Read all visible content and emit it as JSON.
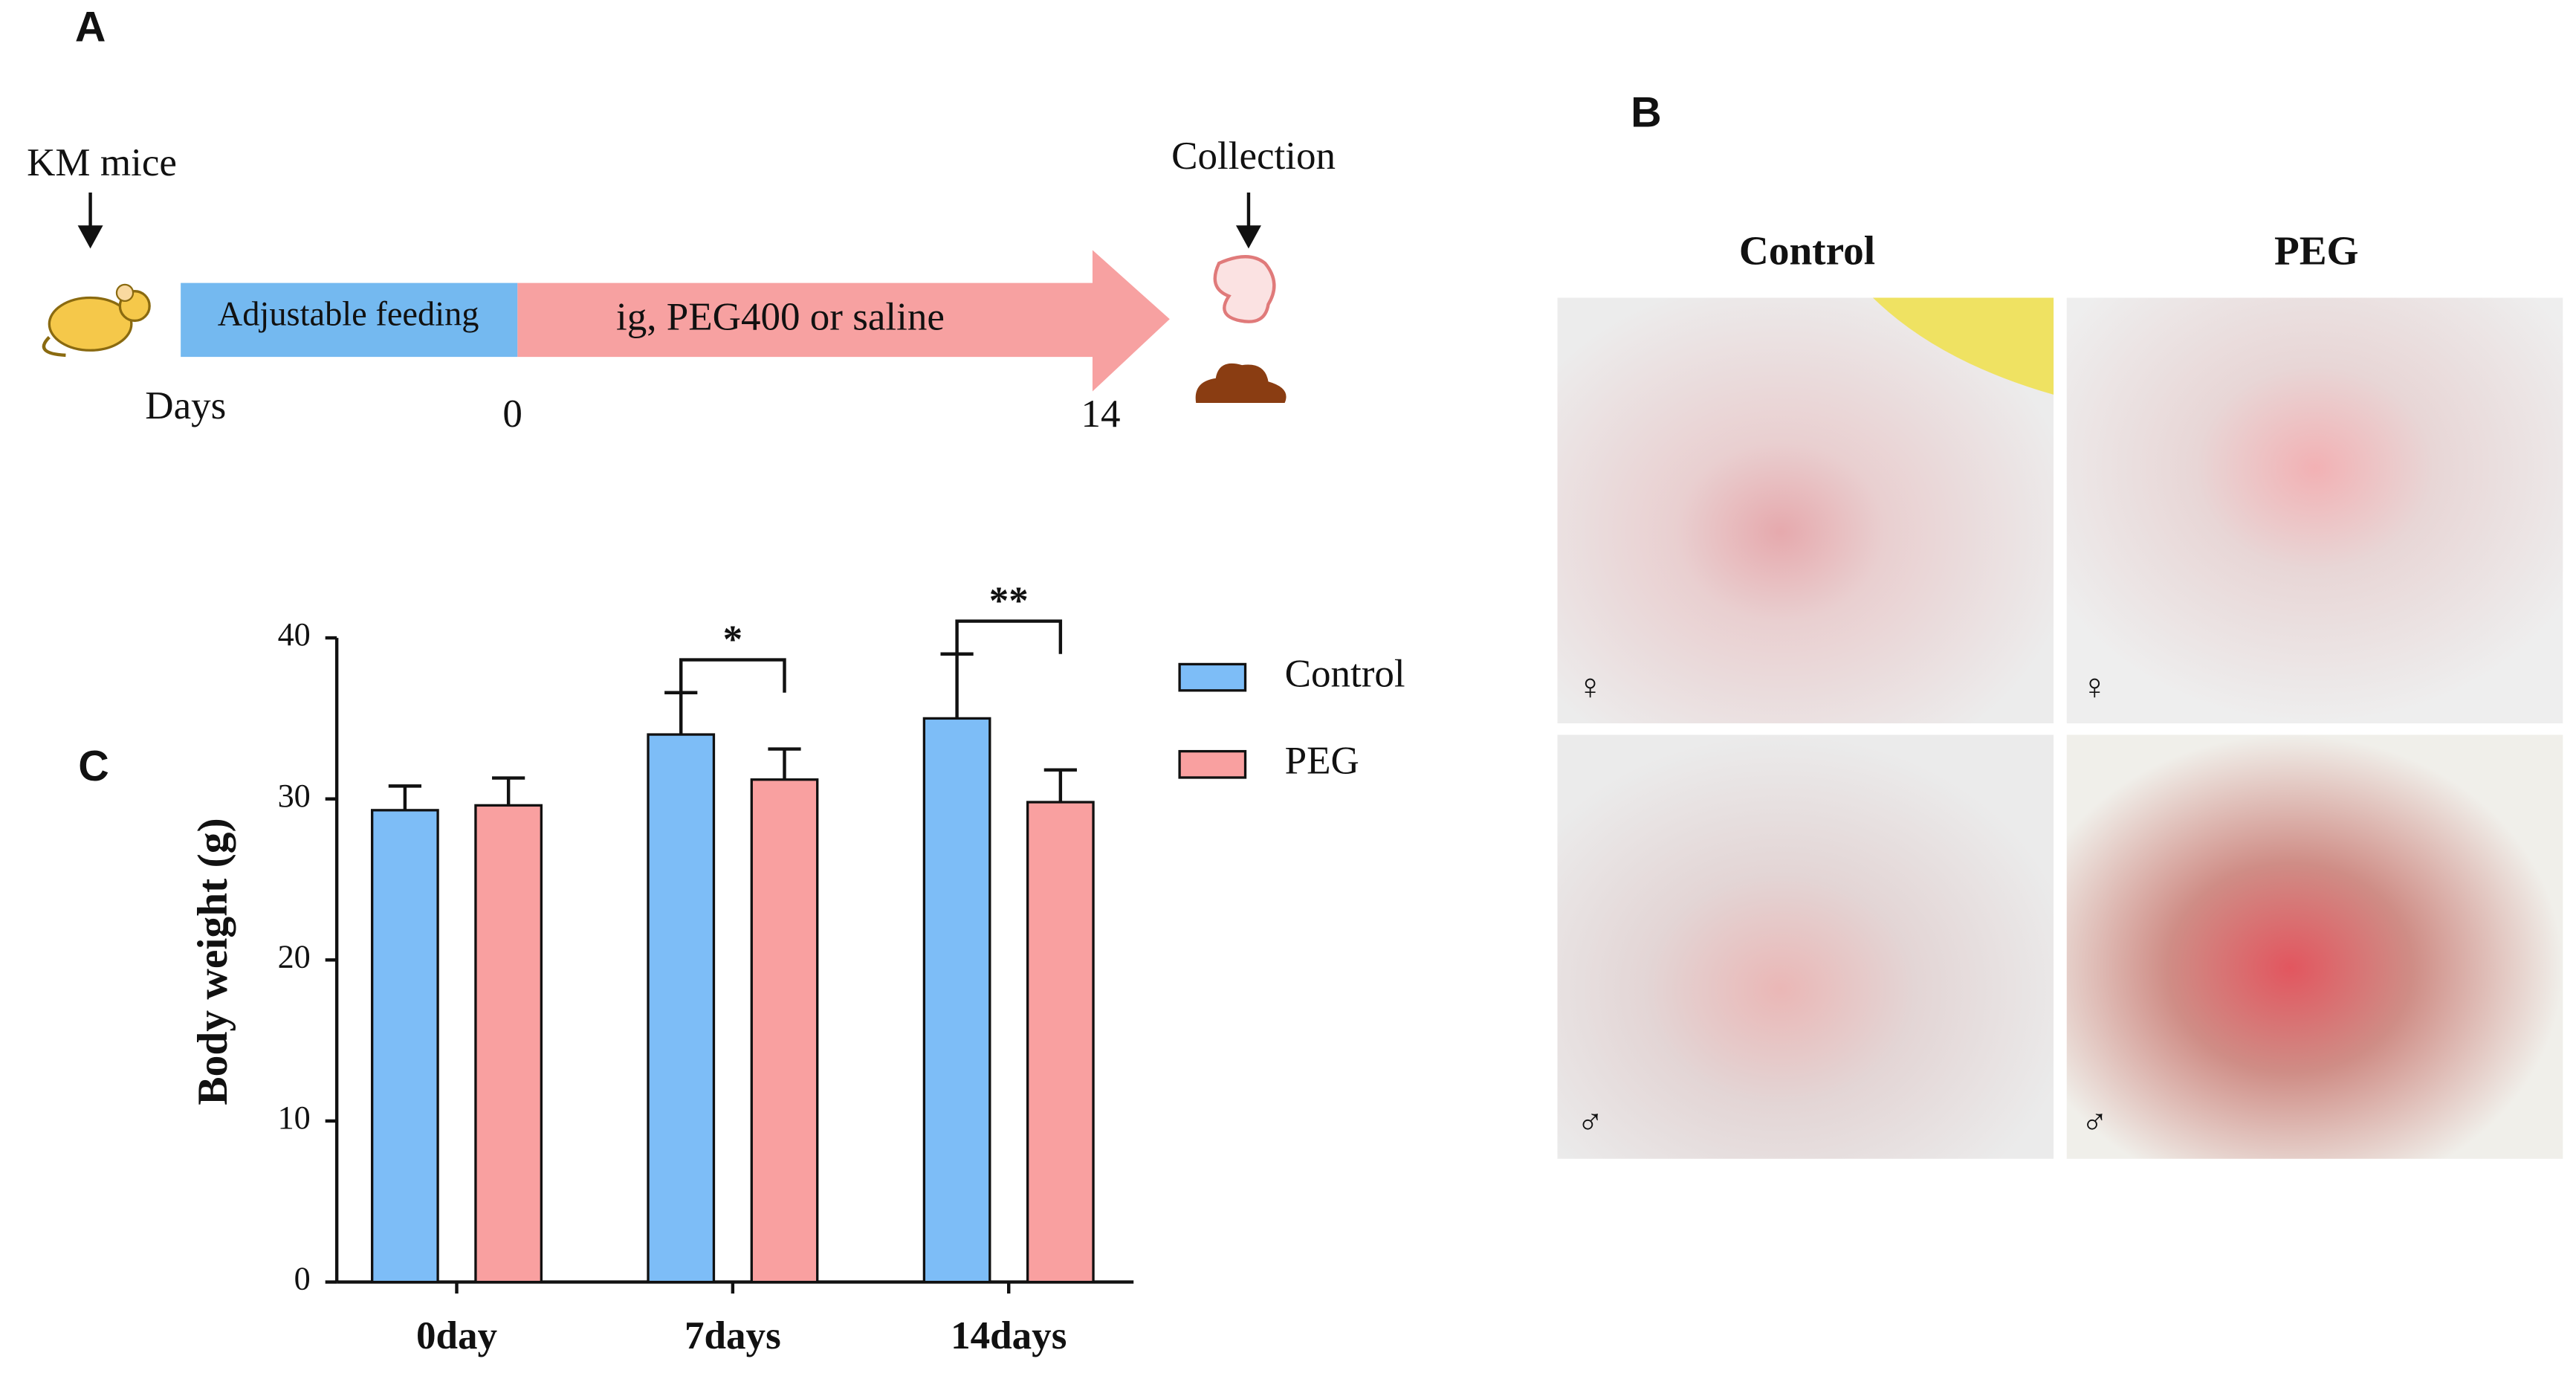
{
  "panel_a": {
    "label": "A",
    "start": "KM mice",
    "end": "Collection",
    "phase1": "Adjustable feeding",
    "phase2": "ig, PEG400 or saline",
    "axis_label": "Days",
    "day_start": "0",
    "day_end": "14"
  },
  "panel_b": {
    "label": "B",
    "columns": [
      "Control",
      "PEG"
    ],
    "rows": [
      "♀",
      "♂"
    ]
  },
  "panel_c": {
    "label": "C"
  },
  "chart_data": {
    "type": "bar",
    "ylabel": "Body weight (g)",
    "categories": [
      "0day",
      "7days",
      "14days"
    ],
    "series": [
      {
        "name": "Control",
        "color": "#7dbdf7",
        "values": [
          29.3,
          34,
          35
        ],
        "errors": [
          1.5,
          2.6,
          4
        ]
      },
      {
        "name": "PEG",
        "color": "#f9a0a0",
        "values": [
          29.6,
          31.2,
          29.8
        ],
        "errors": [
          1.7,
          1.9,
          2
        ]
      }
    ],
    "ylim": [
      0,
      40
    ],
    "yticks": [
      0,
      10,
      20,
      30,
      40
    ],
    "annotations": [
      {
        "text": "*",
        "category": "7days"
      },
      {
        "text": "**",
        "category": "14days"
      }
    ]
  }
}
